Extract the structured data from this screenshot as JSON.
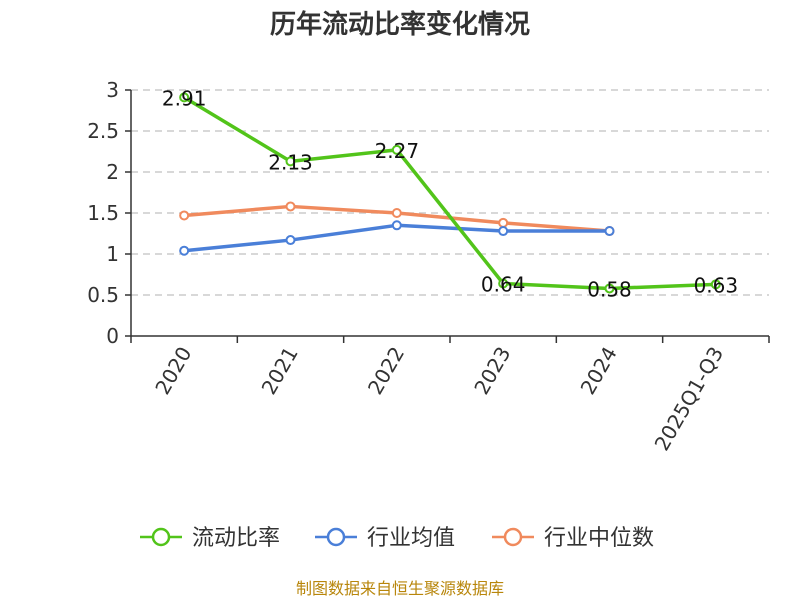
{
  "source_text": "制图数据来自恒生聚源数据库",
  "chart_data": {
    "type": "line",
    "title": "历年流动比率变化情况",
    "categories": [
      "2020",
      "2021",
      "2022",
      "2023",
      "2024",
      "2025Q1-Q3"
    ],
    "ylim": [
      0,
      3
    ],
    "yticks": [
      "0",
      "0.5",
      "1",
      "1.5",
      "2",
      "2.5",
      "3"
    ],
    "grid": true,
    "legend_position": "bottom",
    "series": [
      {
        "name": "流动比率",
        "color": "#52c41a",
        "values": [
          2.91,
          2.13,
          2.27,
          0.64,
          0.58,
          0.63
        ],
        "labels": [
          "2.91",
          "2.13",
          "2.27",
          "0.64",
          "0.58",
          "0.63"
        ]
      },
      {
        "name": "行业均值",
        "color": "#4a7fd8",
        "values": [
          1.04,
          1.17,
          1.35,
          1.28,
          1.28,
          null
        ]
      },
      {
        "name": "行业中位数",
        "color": "#f08a5d",
        "values": [
          1.47,
          1.58,
          1.5,
          1.38,
          1.28,
          null
        ]
      }
    ]
  }
}
